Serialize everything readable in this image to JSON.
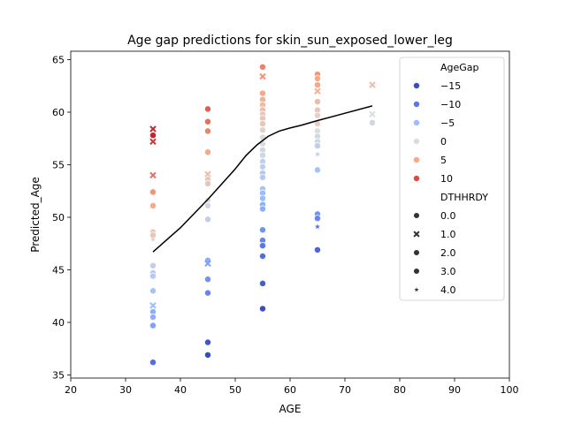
{
  "chart_data": {
    "type": "scatter",
    "title": "Age gap predictions for skin_sun_exposed_lower_leg",
    "xlabel": "AGE",
    "ylabel": "Predicted_Age",
    "xlim": [
      20,
      100
    ],
    "ylim": [
      34.7,
      65.8
    ],
    "xticks": [
      20,
      30,
      40,
      50,
      60,
      70,
      80,
      90,
      100
    ],
    "yticks": [
      35,
      40,
      45,
      50,
      55,
      60,
      65
    ],
    "grid": false,
    "legend": {
      "placement": "top-right",
      "hue_title": "AgeGap",
      "hue_entries": [
        {
          "label": "−15",
          "color": "#3b4cc0"
        },
        {
          "label": "−10",
          "color": "#5a78e4"
        },
        {
          "label": "−5",
          "color": "#9bbcff"
        },
        {
          "label": "0",
          "color": "#dddcdc"
        },
        {
          "label": "5",
          "color": "#f7a889"
        },
        {
          "label": "10",
          "color": "#d44e41"
        }
      ],
      "style_title": "DTHHRDY",
      "style_entries": [
        {
          "label": "0.0",
          "marker": "circle"
        },
        {
          "label": "1.0",
          "marker": "x"
        },
        {
          "label": "2.0",
          "marker": "circle"
        },
        {
          "label": "3.0",
          "marker": "circle"
        },
        {
          "label": "4.0",
          "marker": "star"
        }
      ]
    },
    "trend_line": {
      "x": [
        35,
        40,
        45,
        50,
        52,
        54,
        55,
        56,
        58,
        60,
        62,
        65,
        70,
        75
      ],
      "y": [
        46.7,
        49.0,
        51.7,
        54.6,
        55.9,
        56.9,
        57.3,
        57.7,
        58.2,
        58.5,
        58.75,
        59.2,
        59.9,
        60.6
      ]
    },
    "points": [
      {
        "x": 35,
        "y": 58.4,
        "gap": 12,
        "m": "x"
      },
      {
        "x": 35,
        "y": 57.8,
        "gap": 12,
        "m": "circle"
      },
      {
        "x": 35,
        "y": 57.2,
        "gap": 11,
        "m": "x"
      },
      {
        "x": 35,
        "y": 54.0,
        "gap": 8,
        "m": "x"
      },
      {
        "x": 35,
        "y": 52.4,
        "gap": 6,
        "m": "circle"
      },
      {
        "x": 35,
        "y": 51.1,
        "gap": 5,
        "m": "circle"
      },
      {
        "x": 35,
        "y": 48.6,
        "gap": 2,
        "m": "circle"
      },
      {
        "x": 35,
        "y": 48.3,
        "gap": 2,
        "m": "circle"
      },
      {
        "x": 35,
        "y": 47.9,
        "gap": 1,
        "m": "star"
      },
      {
        "x": 35,
        "y": 45.4,
        "gap": -2,
        "m": "circle"
      },
      {
        "x": 35,
        "y": 44.7,
        "gap": -3,
        "m": "circle"
      },
      {
        "x": 35,
        "y": 44.4,
        "gap": -3,
        "m": "circle"
      },
      {
        "x": 35,
        "y": 43.0,
        "gap": -4,
        "m": "circle"
      },
      {
        "x": 35,
        "y": 41.6,
        "gap": -5,
        "m": "x"
      },
      {
        "x": 35,
        "y": 41.0,
        "gap": -6,
        "m": "circle"
      },
      {
        "x": 35,
        "y": 40.5,
        "gap": -6,
        "m": "circle"
      },
      {
        "x": 35,
        "y": 39.7,
        "gap": -7,
        "m": "circle"
      },
      {
        "x": 35,
        "y": 36.2,
        "gap": -11,
        "m": "circle"
      },
      {
        "x": 45,
        "y": 60.3,
        "gap": 9,
        "m": "circle"
      },
      {
        "x": 45,
        "y": 59.1,
        "gap": 8,
        "m": "circle"
      },
      {
        "x": 45,
        "y": 58.2,
        "gap": 7,
        "m": "circle"
      },
      {
        "x": 45,
        "y": 56.2,
        "gap": 5,
        "m": "circle"
      },
      {
        "x": 45,
        "y": 54.1,
        "gap": 3,
        "m": "x"
      },
      {
        "x": 45,
        "y": 53.6,
        "gap": 2,
        "m": "circle"
      },
      {
        "x": 45,
        "y": 53.2,
        "gap": 2,
        "m": "circle"
      },
      {
        "x": 45,
        "y": 51.6,
        "gap": 0,
        "m": "circle"
      },
      {
        "x": 45,
        "y": 51.1,
        "gap": -1,
        "m": "circle"
      },
      {
        "x": 45,
        "y": 49.8,
        "gap": -2,
        "m": "circle"
      },
      {
        "x": 45,
        "y": 45.9,
        "gap": -6,
        "m": "circle"
      },
      {
        "x": 45,
        "y": 45.6,
        "gap": -7,
        "m": "x"
      },
      {
        "x": 45,
        "y": 44.1,
        "gap": -8,
        "m": "circle"
      },
      {
        "x": 45,
        "y": 42.8,
        "gap": -9,
        "m": "circle"
      },
      {
        "x": 45,
        "y": 38.1,
        "gap": -14,
        "m": "circle"
      },
      {
        "x": 45,
        "y": 36.9,
        "gap": -15,
        "m": "circle"
      },
      {
        "x": 55,
        "y": 64.3,
        "gap": 7,
        "m": "circle"
      },
      {
        "x": 55,
        "y": 63.4,
        "gap": 6,
        "m": "x"
      },
      {
        "x": 55,
        "y": 61.8,
        "gap": 5,
        "m": "circle"
      },
      {
        "x": 55,
        "y": 61.2,
        "gap": 4,
        "m": "circle"
      },
      {
        "x": 55,
        "y": 60.7,
        "gap": 3,
        "m": "circle"
      },
      {
        "x": 55,
        "y": 60.2,
        "gap": 3,
        "m": "circle"
      },
      {
        "x": 55,
        "y": 59.8,
        "gap": 2,
        "m": "circle"
      },
      {
        "x": 55,
        "y": 59.4,
        "gap": 2,
        "m": "circle"
      },
      {
        "x": 55,
        "y": 58.9,
        "gap": 2,
        "m": "circle"
      },
      {
        "x": 55,
        "y": 58.3,
        "gap": 1,
        "m": "circle"
      },
      {
        "x": 55,
        "y": 57.6,
        "gap": 0,
        "m": "circle"
      },
      {
        "x": 55,
        "y": 57.0,
        "gap": 0,
        "m": "circle"
      },
      {
        "x": 55,
        "y": 56.4,
        "gap": -1,
        "m": "circle"
      },
      {
        "x": 55,
        "y": 55.9,
        "gap": -1,
        "m": "circle"
      },
      {
        "x": 55,
        "y": 55.3,
        "gap": -2,
        "m": "circle"
      },
      {
        "x": 55,
        "y": 54.8,
        "gap": -2,
        "m": "circle"
      },
      {
        "x": 55,
        "y": 54.2,
        "gap": -3,
        "m": "circle"
      },
      {
        "x": 55,
        "y": 53.8,
        "gap": -3,
        "m": "circle"
      },
      {
        "x": 55,
        "y": 52.7,
        "gap": -4,
        "m": "circle"
      },
      {
        "x": 55,
        "y": 52.3,
        "gap": -5,
        "m": "circle"
      },
      {
        "x": 55,
        "y": 51.8,
        "gap": -5,
        "m": "circle"
      },
      {
        "x": 55,
        "y": 51.2,
        "gap": -6,
        "m": "circle"
      },
      {
        "x": 55,
        "y": 50.8,
        "gap": -6,
        "m": "circle"
      },
      {
        "x": 55,
        "y": 48.8,
        "gap": -8,
        "m": "circle"
      },
      {
        "x": 55,
        "y": 47.8,
        "gap": -9,
        "m": "circle"
      },
      {
        "x": 55,
        "y": 47.3,
        "gap": -10,
        "m": "circle"
      },
      {
        "x": 55,
        "y": 46.3,
        "gap": -11,
        "m": "circle"
      },
      {
        "x": 55,
        "y": 43.7,
        "gap": -13,
        "m": "circle"
      },
      {
        "x": 55,
        "y": 41.3,
        "gap": -15,
        "m": "circle"
      },
      {
        "x": 65,
        "y": 63.6,
        "gap": 6,
        "m": "circle"
      },
      {
        "x": 65,
        "y": 63.2,
        "gap": 5,
        "m": "circle"
      },
      {
        "x": 65,
        "y": 62.6,
        "gap": 5,
        "m": "circle"
      },
      {
        "x": 65,
        "y": 62.0,
        "gap": 4,
        "m": "x"
      },
      {
        "x": 65,
        "y": 61.0,
        "gap": 3,
        "m": "circle"
      },
      {
        "x": 65,
        "y": 60.2,
        "gap": 2,
        "m": "circle"
      },
      {
        "x": 65,
        "y": 59.7,
        "gap": 1,
        "m": "circle"
      },
      {
        "x": 65,
        "y": 58.9,
        "gap": 1,
        "m": "circle"
      },
      {
        "x": 65,
        "y": 58.2,
        "gap": 0,
        "m": "circle"
      },
      {
        "x": 65,
        "y": 57.7,
        "gap": -1,
        "m": "circle"
      },
      {
        "x": 65,
        "y": 57.2,
        "gap": -1,
        "m": "circle"
      },
      {
        "x": 65,
        "y": 56.8,
        "gap": -2,
        "m": "circle"
      },
      {
        "x": 65,
        "y": 56.0,
        "gap": -2,
        "m": "star"
      },
      {
        "x": 65,
        "y": 54.5,
        "gap": -4,
        "m": "circle"
      },
      {
        "x": 65,
        "y": 50.3,
        "gap": -8,
        "m": "circle"
      },
      {
        "x": 65,
        "y": 49.9,
        "gap": -9,
        "m": "circle"
      },
      {
        "x": 65,
        "y": 49.1,
        "gap": -10,
        "m": "star"
      },
      {
        "x": 65,
        "y": 46.9,
        "gap": -12,
        "m": "circle"
      },
      {
        "x": 75,
        "y": 62.6,
        "gap": 3,
        "m": "x"
      },
      {
        "x": 75,
        "y": 59.8,
        "gap": 0,
        "m": "x"
      },
      {
        "x": 75,
        "y": 59.0,
        "gap": -1,
        "m": "circle"
      }
    ]
  }
}
